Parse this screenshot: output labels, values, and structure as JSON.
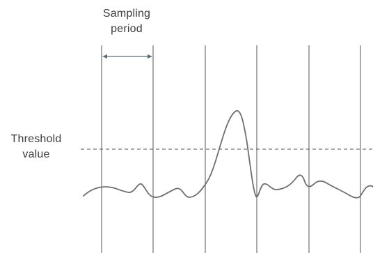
{
  "labels": {
    "sampling_period": [
      "Sampling",
      "period"
    ],
    "threshold_value": [
      "Threshold",
      "value"
    ]
  },
  "colors": {
    "line": "#555555",
    "signal": "#6e6e6e",
    "text": "#3a3a3a",
    "arrow": "#5b6f73"
  }
}
